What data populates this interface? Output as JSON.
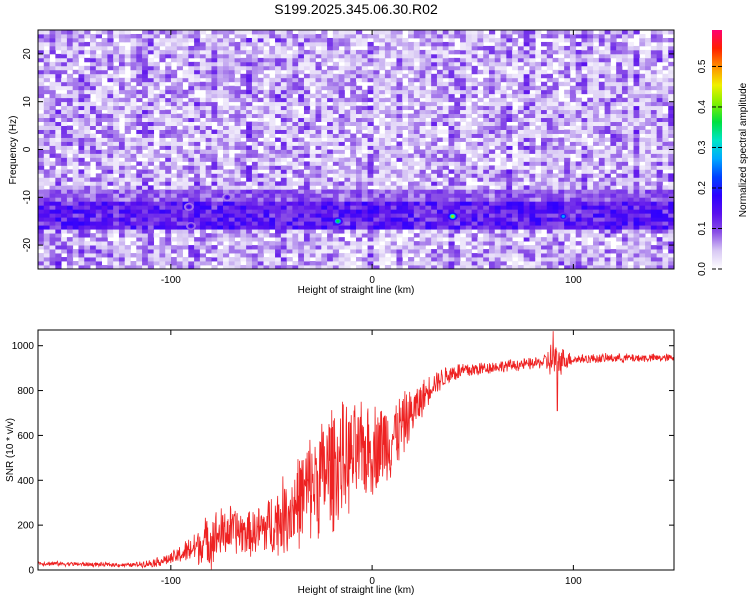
{
  "title": "S199.2025.345.06.30.R02",
  "chart_data": [
    {
      "type": "heatmap",
      "xlabel": "Height of straight line (km)",
      "ylabel": "Frequency (Hz)",
      "xlim": [
        -166,
        150
      ],
      "ylim": [
        -25,
        25
      ],
      "xticks": [
        -100,
        0,
        100
      ],
      "yticks": [
        -20,
        -10,
        0,
        10,
        20
      ],
      "colorbar": {
        "label": "Normalized spectral amplitude",
        "range": [
          0,
          0.59
        ],
        "ticks": [
          0.0,
          0.1,
          0.2,
          0.3,
          0.4,
          0.5
        ],
        "colors": [
          "#ffffff",
          "#d8c8f4",
          "#8a4fe6",
          "#5a10ee",
          "#2d00ff",
          "#0040ff",
          "#00a8ff",
          "#00e5c8",
          "#00e040",
          "#80f000",
          "#f0f000",
          "#ff9000",
          "#ff2000",
          "#ff0070"
        ]
      },
      "features": {
        "background_amplitude": [
          0.0,
          0.12
        ],
        "band": {
          "center_freq": -14,
          "half_width": 3,
          "amplitude": [
            0.08,
            0.18
          ]
        },
        "upper_band": {
          "center_freq": -10,
          "x_range": [
            -166,
            150
          ],
          "amplitude": [
            0.05,
            0.12
          ]
        },
        "hotspots": [
          {
            "x": -91,
            "f": -12,
            "value": 0.17
          },
          {
            "x": -90,
            "f": -16,
            "value": 0.18
          },
          {
            "x": -72,
            "f": -10,
            "value": 0.16
          },
          {
            "x": -17,
            "f": -15,
            "value": 0.36
          },
          {
            "x": 40,
            "f": -14,
            "value": 0.42
          },
          {
            "x": 95,
            "f": -14,
            "value": 0.27
          }
        ]
      }
    },
    {
      "type": "line",
      "xlabel": "Height of straight line (km)",
      "ylabel": "SNR (10 * v/v)",
      "xlim": [
        -166,
        150
      ],
      "ylim": [
        0,
        1070
      ],
      "xticks": [
        -100,
        0,
        100
      ],
      "yticks": [
        0,
        200,
        400,
        600,
        800,
        1000
      ],
      "color": "#ee2222",
      "anchors": [
        [
          -166,
          30
        ],
        [
          -140,
          25
        ],
        [
          -120,
          22
        ],
        [
          -110,
          30
        ],
        [
          -100,
          50
        ],
        [
          -90,
          90
        ],
        [
          -80,
          140
        ],
        [
          -70,
          180
        ],
        [
          -60,
          160
        ],
        [
          -50,
          200
        ],
        [
          -40,
          270
        ],
        [
          -30,
          380
        ],
        [
          -20,
          460
        ],
        [
          -10,
          500
        ],
        [
          0,
          540
        ],
        [
          10,
          590
        ],
        [
          20,
          700
        ],
        [
          30,
          830
        ],
        [
          40,
          880
        ],
        [
          60,
          905
        ],
        [
          80,
          920
        ],
        [
          90,
          935
        ],
        [
          100,
          940
        ],
        [
          120,
          945
        ],
        [
          150,
          945
        ]
      ],
      "noise": [
        [
          -166,
          12
        ],
        [
          -120,
          10
        ],
        [
          -100,
          30
        ],
        [
          -90,
          70
        ],
        [
          -80,
          140
        ],
        [
          -60,
          110
        ],
        [
          -45,
          190
        ],
        [
          -20,
          320
        ],
        [
          -10,
          260
        ],
        [
          10,
          200
        ],
        [
          20,
          120
        ],
        [
          30,
          60
        ],
        [
          60,
          30
        ],
        [
          85,
          30
        ],
        [
          90,
          110
        ],
        [
          95,
          60
        ],
        [
          100,
          25
        ],
        [
          150,
          20
        ]
      ],
      "spikes": [
        {
          "x": 92,
          "value": 710
        },
        {
          "x": 90,
          "value": 1065
        }
      ]
    }
  ]
}
